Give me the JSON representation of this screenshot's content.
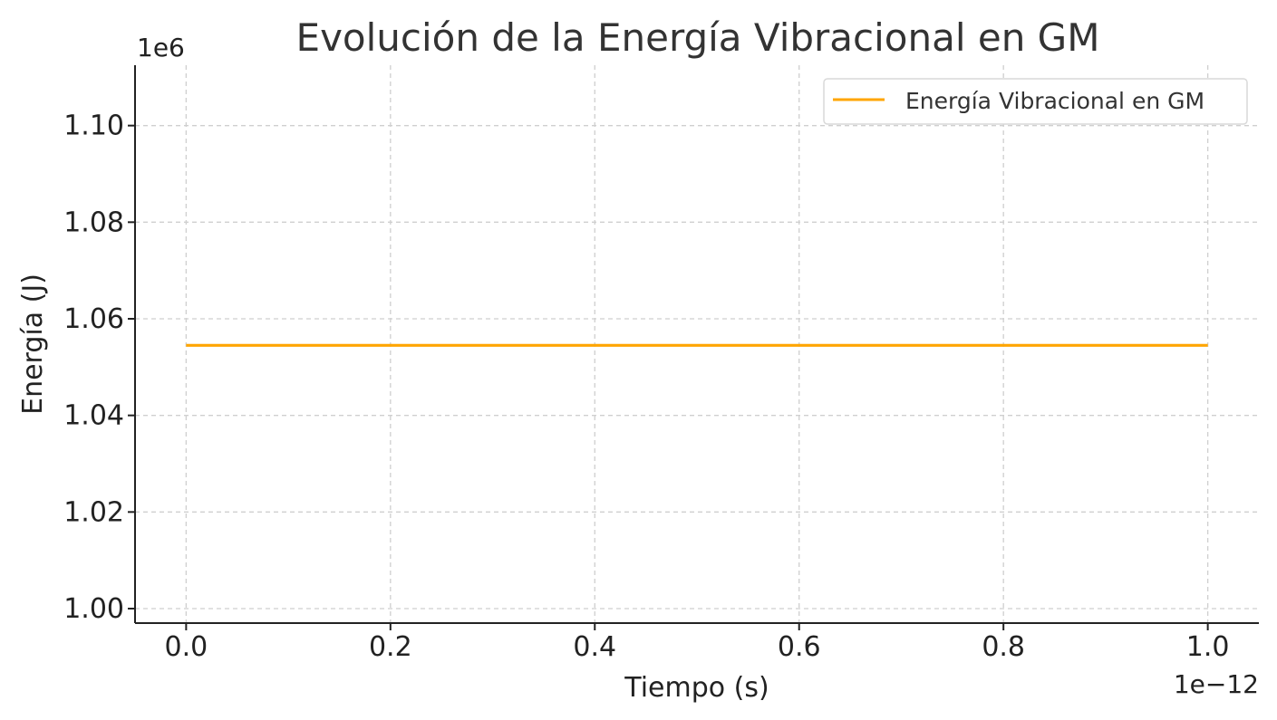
{
  "chart_data": {
    "type": "line",
    "title": "Evolución de la Energía Vibracional en GM",
    "xlabel": "Tiempo (s)",
    "ylabel": "Energía (J)",
    "x_offset_label": "1e−12",
    "y_offset_label": "1e6",
    "x_tick_labels": [
      "0.0",
      "0.2",
      "0.4",
      "0.6",
      "0.8",
      "1.0"
    ],
    "x_ticks": [
      0.0,
      0.2,
      0.4,
      0.6,
      0.8,
      1.0
    ],
    "y_tick_labels": [
      "1.00",
      "1.02",
      "1.04",
      "1.06",
      "1.08",
      "1.10"
    ],
    "y_ticks": [
      1.0,
      1.02,
      1.04,
      1.06,
      1.08,
      1.1
    ],
    "xlim": [
      -0.05,
      1.05
    ],
    "ylim": [
      0.997,
      1.1125
    ],
    "grid": true,
    "legend_position": "top-right",
    "series": [
      {
        "name": "Energía Vibracional en GM",
        "color": "#FFA500",
        "x": [
          0.0,
          1.0
        ],
        "y": [
          1.0545,
          1.0545
        ]
      }
    ]
  }
}
